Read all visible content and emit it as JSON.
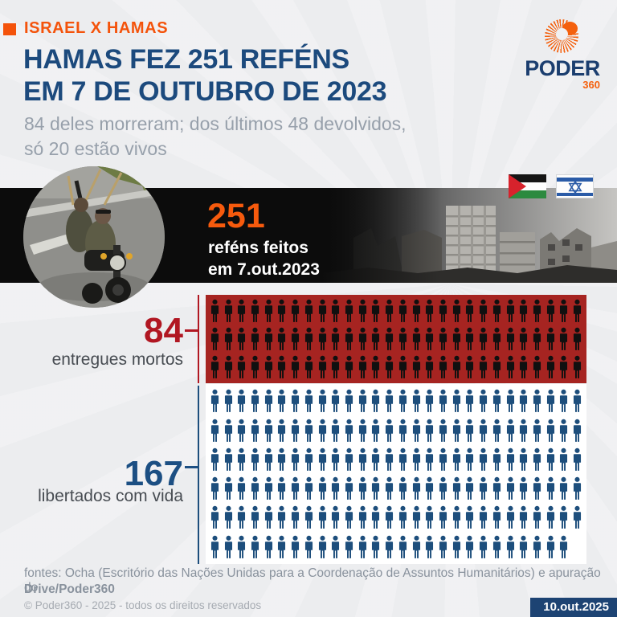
{
  "header": {
    "kicker": "ISRAEL X HAMAS",
    "title_line1": "HAMAS FEZ 251 REFÉNS",
    "title_line2": "EM 7 DE OUTUBRO DE 2023",
    "subtitle_line1": "84 deles morreram; dos últimos 48 devolvidos,",
    "subtitle_line2": "só 20 estão vivos"
  },
  "logo": {
    "wordmark": "PODER",
    "suffix": "360"
  },
  "banner": {
    "big_number": "251",
    "caption_line1": "reféns feitos",
    "caption_line2": "em 7.out.2023",
    "flags": [
      "palestine-flag",
      "israel-flag"
    ]
  },
  "chart_data": {
    "type": "pictogram",
    "title": "251 reféns feitos em 7.out.2023",
    "total": 251,
    "icon": "person-icon",
    "icons_per_row": 28,
    "series": [
      {
        "name": "entregues mortos",
        "value": 84,
        "rows": 3,
        "icon_color": "#101010",
        "block_color": "#a62421",
        "accent_color": "#b11722"
      },
      {
        "name": "libertados com vida",
        "value": 167,
        "rows": 6,
        "icon_color": "#1d4e7c",
        "block_color": "#ffffff",
        "accent_color": "#1c4f83"
      }
    ]
  },
  "footer": {
    "source_line1": "fontes: Ocha (Escritório das Nações Unidas para a Coordenação de Assuntos Humanitários) e apuração do",
    "source_line2": "Drive/Poder360",
    "copyright": "© Poder360 - 2025 - todos os direitos reservados",
    "date_badge": "10.out.2025"
  },
  "colors": {
    "background": "#ecedef",
    "accent_orange": "#f4530b",
    "title_blue": "#1c4a7d",
    "subtitle_gray": "#97a0ab",
    "strip_black": "#0c0c0c",
    "badge_navy": "#1d4373"
  }
}
